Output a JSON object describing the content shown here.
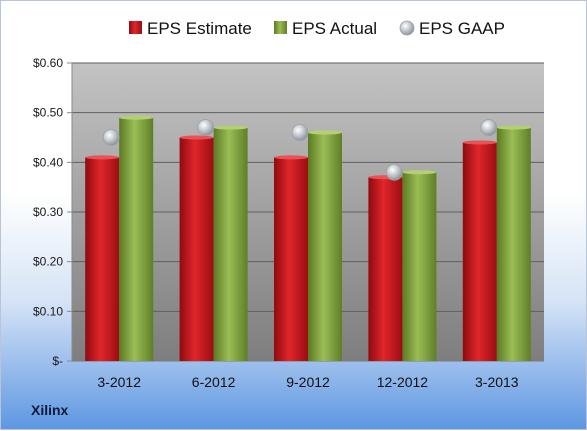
{
  "brand": "Xilinx",
  "colors": {
    "estimate": "#c0161b",
    "actual": "#7e9f3a",
    "gaap": "#b8bec4",
    "plot_top": "#c3c3c3",
    "plot_bottom": "#7e7e7e"
  },
  "chart_data": {
    "type": "bar",
    "categories": [
      "3-2012",
      "6-2012",
      "9-2012",
      "12-2012",
      "3-2013"
    ],
    "series": [
      {
        "name": "EPS Estimate",
        "kind": "bar",
        "values": [
          0.41,
          0.45,
          0.41,
          0.37,
          0.44
        ]
      },
      {
        "name": "EPS Actual",
        "kind": "bar",
        "values": [
          0.49,
          0.47,
          0.46,
          0.38,
          0.47
        ]
      },
      {
        "name": "EPS GAAP",
        "kind": "marker",
        "values": [
          0.45,
          0.47,
          0.46,
          0.38,
          0.47
        ]
      }
    ],
    "yticks": [
      "$-",
      "$0.10",
      "$0.20",
      "$0.30",
      "$0.40",
      "$0.50",
      "$0.60"
    ],
    "ylim": [
      0,
      0.6
    ],
    "grid": true,
    "legend": "top"
  }
}
